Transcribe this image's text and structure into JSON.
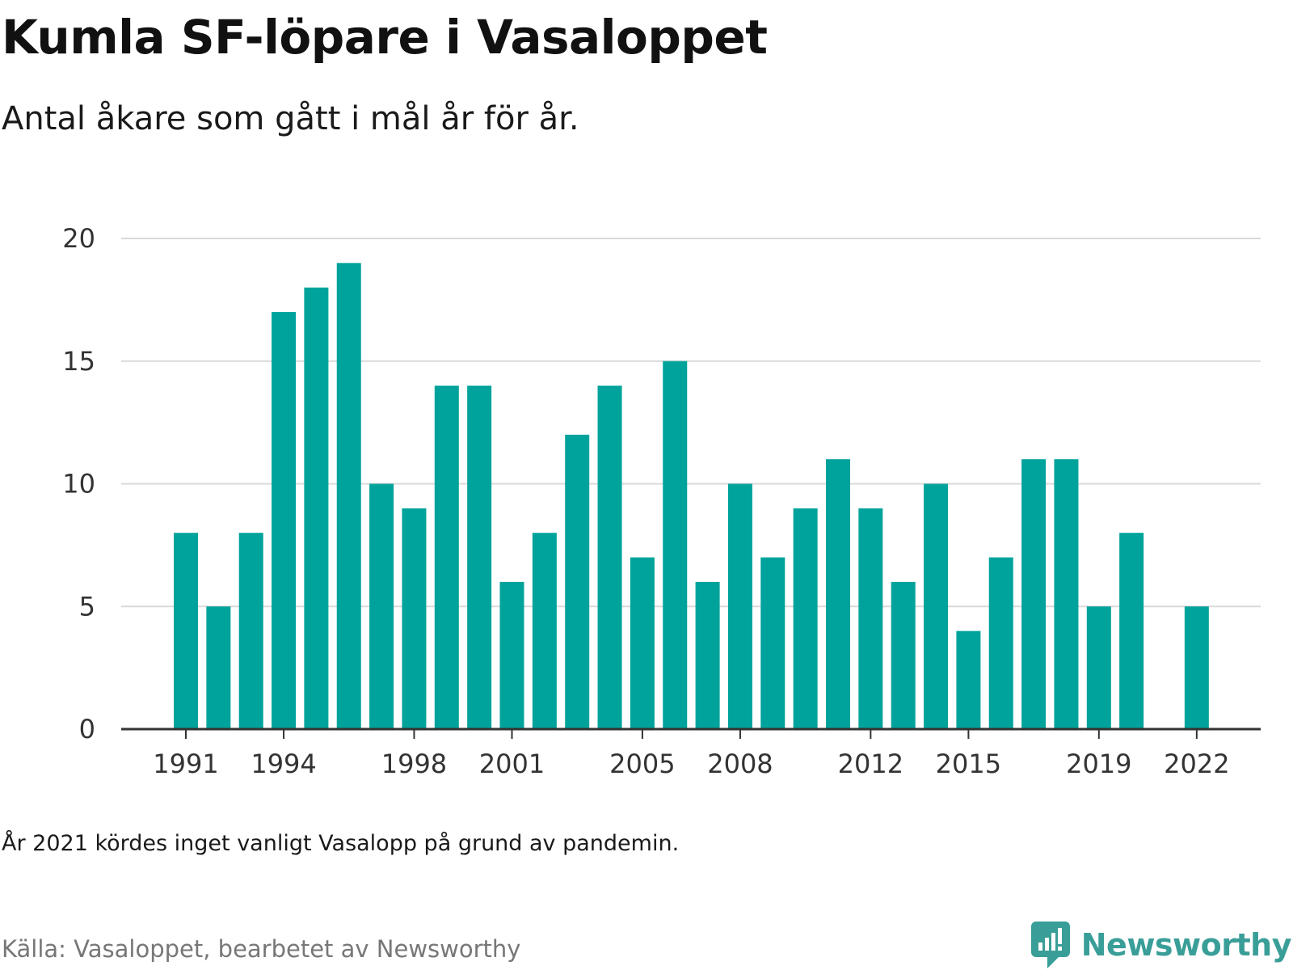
{
  "title": "Kumla SF-löpare i Vasaloppet",
  "subtitle": "Antal åkare som gått i mål år för år.",
  "note": "År 2021 kördes inget vanligt Vasalopp på grund av pandemin.",
  "source": "Källa: Vasaloppet, bearbetet av Newsworthy",
  "brand": {
    "name": "Newsworthy",
    "icon": "newsworthy-logo-icon"
  },
  "colors": {
    "bar": "#00a39b",
    "grid": "#d9d9d9",
    "axis": "#333333",
    "brand": "#3a9e98"
  },
  "chart_data": {
    "type": "bar",
    "title": "Kumla SF-löpare i Vasaloppet",
    "subtitle": "Antal åkare som gått i mål år för år.",
    "xlabel": "",
    "ylabel": "",
    "ylim": [
      0,
      20
    ],
    "yticks": [
      0,
      5,
      10,
      15,
      20
    ],
    "xticks": [
      "1991",
      "1994",
      "1998",
      "2001",
      "2005",
      "2008",
      "2012",
      "2015",
      "2019",
      "2022"
    ],
    "grid": true,
    "legend": "none",
    "categories": [
      "1991",
      "1992",
      "1993",
      "1994",
      "1995",
      "1996",
      "1997",
      "1998",
      "1999",
      "2000",
      "2001",
      "2002",
      "2003",
      "2004",
      "2005",
      "2006",
      "2007",
      "2008",
      "2009",
      "2010",
      "2011",
      "2012",
      "2013",
      "2014",
      "2015",
      "2016",
      "2017",
      "2018",
      "2019",
      "2020",
      "2021",
      "2022"
    ],
    "values": [
      8,
      5,
      8,
      17,
      18,
      19,
      10,
      9,
      14,
      14,
      6,
      8,
      12,
      14,
      7,
      15,
      6,
      10,
      7,
      9,
      11,
      9,
      6,
      10,
      4,
      7,
      11,
      11,
      5,
      8,
      null,
      5
    ]
  }
}
